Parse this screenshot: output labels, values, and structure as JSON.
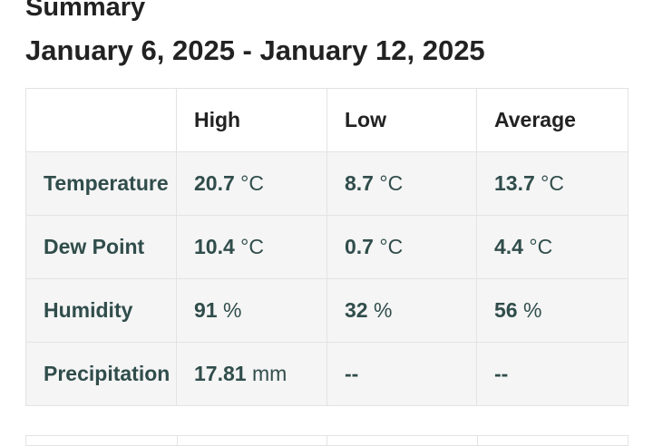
{
  "summary": {
    "title": "Summary",
    "date_range": "January 6, 2025 - January 12, 2025"
  },
  "table": {
    "headers": [
      "",
      "High",
      "Low",
      "Average"
    ],
    "rows": [
      {
        "label": "Temperature",
        "cells": [
          {
            "value": "20.7",
            "unit": "°C"
          },
          {
            "value": "8.7",
            "unit": "°C"
          },
          {
            "value": "13.7",
            "unit": "°C"
          }
        ]
      },
      {
        "label": "Dew Point",
        "cells": [
          {
            "value": "10.4",
            "unit": "°C"
          },
          {
            "value": "0.7",
            "unit": "°C"
          },
          {
            "value": "4.4",
            "unit": "°C"
          }
        ]
      },
      {
        "label": "Humidity",
        "cells": [
          {
            "value": "91",
            "unit": "%"
          },
          {
            "value": "32",
            "unit": "%"
          },
          {
            "value": "56",
            "unit": "%"
          }
        ]
      },
      {
        "label": "Precipitation",
        "cells": [
          {
            "value": "17.81",
            "unit": "mm"
          },
          {
            "value": "--",
            "unit": ""
          },
          {
            "value": "--",
            "unit": ""
          }
        ]
      }
    ]
  }
}
